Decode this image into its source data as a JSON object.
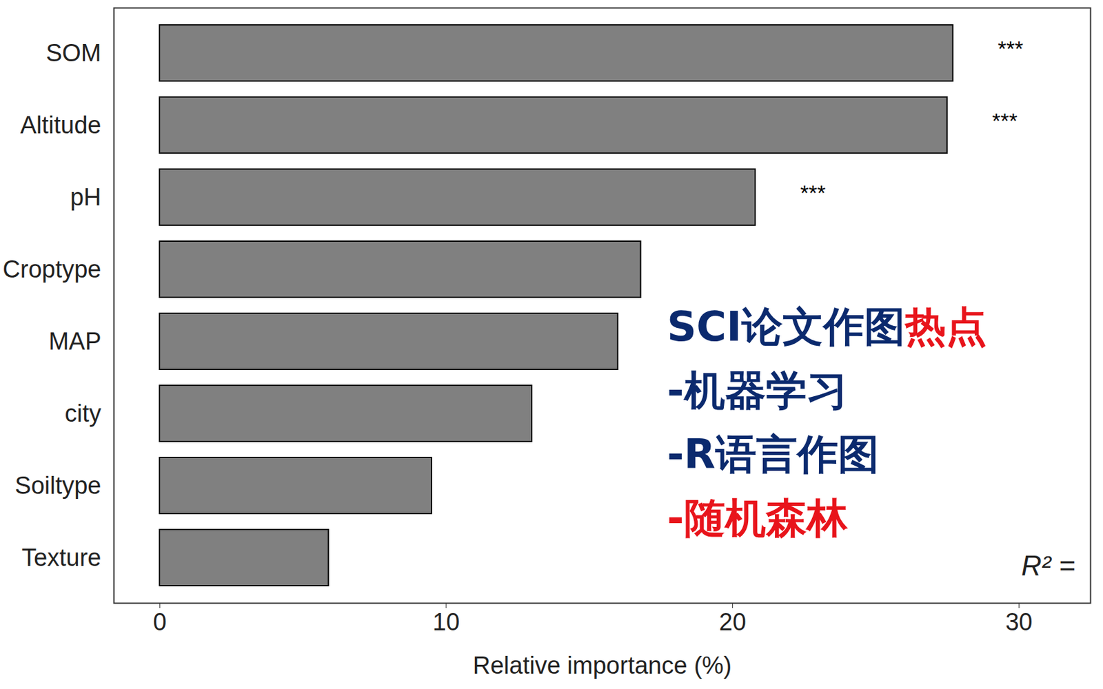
{
  "chart_data": {
    "type": "bar",
    "orientation": "horizontal",
    "categories": [
      "SOM",
      "Altitude",
      "pH",
      "Croptype",
      "MAP",
      "city",
      "Soiltype",
      "Texture"
    ],
    "values": [
      27.7,
      27.5,
      20.8,
      16.8,
      16.0,
      13.0,
      9.5,
      5.9
    ],
    "significance": [
      "***",
      "***",
      "***",
      null,
      null,
      null,
      null,
      null
    ],
    "color": "#808080",
    "xlim": [
      -1.6,
      32.5
    ],
    "xticks": [
      0,
      10,
      20,
      30
    ],
    "x_label": "Relative importance (%)",
    "r2_label": "R² =",
    "annotations": [
      [
        {
          "text": "SCI论文作图",
          "color": "#0b2a6e"
        },
        {
          "text": "热点",
          "color": "#e8141b"
        }
      ],
      [
        {
          "text": "-机器学习",
          "color": "#0b2a6e"
        }
      ],
      [
        {
          "text": "-R语言作图",
          "color": "#0b2a6e"
        }
      ],
      [
        {
          "text": "-随机森林",
          "color": "#e8141b"
        }
      ]
    ]
  }
}
